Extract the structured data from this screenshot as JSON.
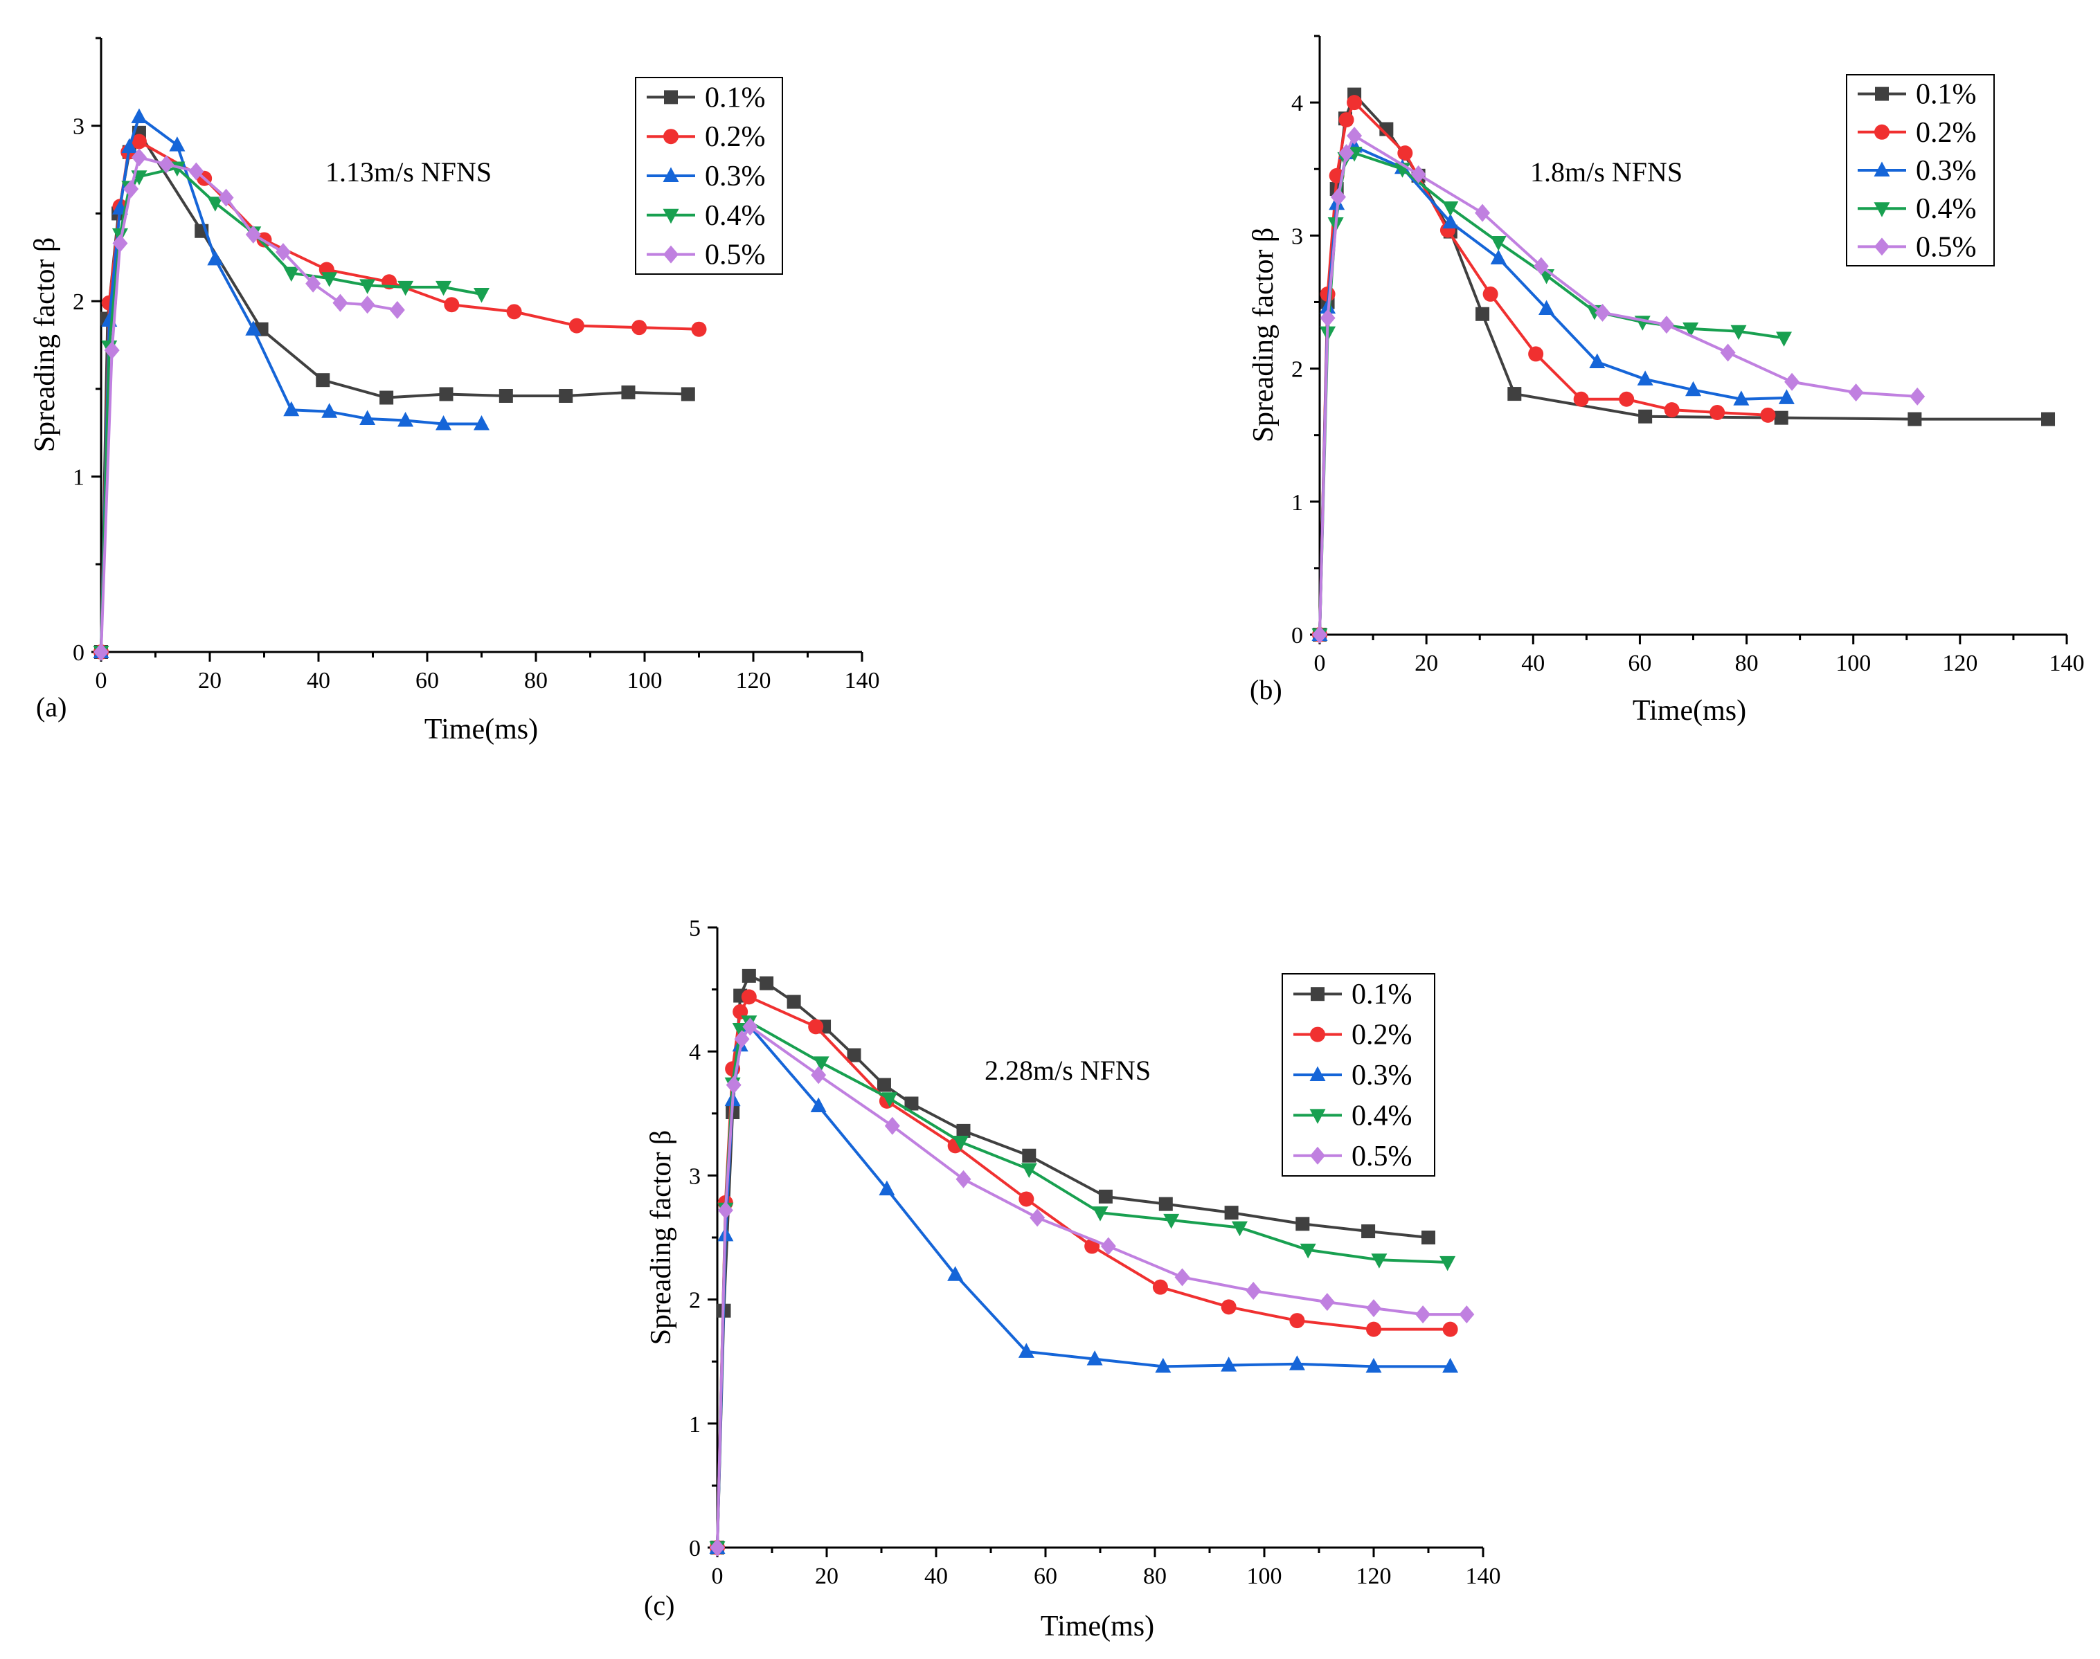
{
  "figure": {
    "background": "#ffffff"
  },
  "chart_data": [
    {
      "type": "line",
      "panel_label": "(a)",
      "annotation": "1.13m/s   NFNS",
      "xlabel": "Time(ms)",
      "ylabel": "Spreading factor β",
      "xlim": [
        0,
        140
      ],
      "ylim": [
        0,
        3.5
      ],
      "xticks": [
        0,
        20,
        40,
        60,
        80,
        100,
        120,
        140
      ],
      "yticks": [
        0,
        1,
        2,
        3
      ],
      "legend_position": "top-right",
      "series": [
        {
          "name": "0.1%",
          "color": "#404040",
          "marker": "square",
          "x": [
            0,
            1.2,
            3.2,
            5.2,
            7.0,
            18.5,
            29.5,
            40.8,
            52.5,
            63.5,
            74.5,
            85.5,
            97.0,
            108.0
          ],
          "y": [
            0,
            1.9,
            2.5,
            2.85,
            2.96,
            2.4,
            1.84,
            1.55,
            1.45,
            1.47,
            1.46,
            1.46,
            1.48,
            1.47
          ]
        },
        {
          "name": "0.2%",
          "color": "#f03030",
          "marker": "circle",
          "x": [
            0,
            1.5,
            3.5,
            5.0,
            7.0,
            19.0,
            30.0,
            41.5,
            53.0,
            64.5,
            76.0,
            87.5,
            99.0,
            110.0
          ],
          "y": [
            0,
            1.99,
            2.54,
            2.85,
            2.91,
            2.7,
            2.35,
            2.18,
            2.11,
            1.98,
            1.94,
            1.86,
            1.85,
            1.84
          ]
        },
        {
          "name": "0.3%",
          "color": "#1565d8",
          "marker": "triangle-up",
          "x": [
            0,
            1.5,
            3.5,
            5.2,
            7.0,
            14.0,
            21.0,
            28.0,
            35.0,
            42.0,
            49.0,
            56.0,
            63.0,
            70.0
          ],
          "y": [
            0,
            1.89,
            2.53,
            2.88,
            3.05,
            2.89,
            2.24,
            1.84,
            1.38,
            1.37,
            1.33,
            1.32,
            1.3,
            1.3
          ]
        },
        {
          "name": "0.4%",
          "color": "#18a050",
          "marker": "triangle-down",
          "x": [
            0,
            1.5,
            3.5,
            5.2,
            7.0,
            14.0,
            21.0,
            28.0,
            35.0,
            42.0,
            49.0,
            56.0,
            63.0,
            70.0
          ],
          "y": [
            0,
            1.74,
            2.38,
            2.65,
            2.71,
            2.76,
            2.56,
            2.39,
            2.16,
            2.13,
            2.09,
            2.08,
            2.08,
            2.04
          ]
        },
        {
          "name": "0.5%",
          "color": "#c080e0",
          "marker": "diamond",
          "x": [
            0,
            2.0,
            3.5,
            5.5,
            7.0,
            12.0,
            17.5,
            23.0,
            28.0,
            33.5,
            39.0,
            44.0,
            49.0,
            54.5
          ],
          "y": [
            0,
            1.72,
            2.33,
            2.64,
            2.82,
            2.78,
            2.74,
            2.59,
            2.38,
            2.28,
            2.1,
            1.99,
            1.98,
            1.95
          ]
        }
      ]
    },
    {
      "type": "line",
      "panel_label": "(b)",
      "annotation": "1.8m/s   NFNS",
      "xlabel": "Time(ms)",
      "ylabel": "Spreading factor β",
      "xlim": [
        0,
        140
      ],
      "ylim": [
        0,
        4.5
      ],
      "xticks": [
        0,
        20,
        40,
        60,
        80,
        100,
        120,
        140
      ],
      "yticks": [
        0,
        1,
        2,
        3,
        4
      ],
      "legend_position": "top-right",
      "series": [
        {
          "name": "0.1%",
          "color": "#404040",
          "marker": "square",
          "x": [
            0,
            1.5,
            3.2,
            4.8,
            6.5,
            12.5,
            18.5,
            24.5,
            30.5,
            36.5,
            61.0,
            86.5,
            111.5,
            136.5
          ],
          "y": [
            0,
            2.5,
            3.35,
            3.88,
            4.06,
            3.8,
            3.45,
            3.03,
            2.41,
            1.81,
            1.64,
            1.63,
            1.62,
            1.62
          ]
        },
        {
          "name": "0.2%",
          "color": "#f03030",
          "marker": "circle",
          "x": [
            0,
            1.5,
            3.2,
            5.0,
            6.5,
            16.0,
            24.0,
            32.0,
            40.5,
            49.0,
            57.5,
            66.0,
            74.5,
            84.0
          ],
          "y": [
            0,
            2.56,
            3.45,
            3.87,
            4.0,
            3.62,
            3.04,
            2.56,
            2.11,
            1.77,
            1.77,
            1.69,
            1.67,
            1.65
          ]
        },
        {
          "name": "0.3%",
          "color": "#1565d8",
          "marker": "triangle-up",
          "x": [
            0,
            1.5,
            3.2,
            5.0,
            6.5,
            15.5,
            24.5,
            33.5,
            42.5,
            52.0,
            61.0,
            70.0,
            79.0,
            87.5
          ],
          "y": [
            0,
            2.46,
            3.24,
            3.62,
            3.67,
            3.51,
            3.1,
            2.83,
            2.45,
            2.05,
            1.92,
            1.84,
            1.77,
            1.78
          ]
        },
        {
          "name": "0.4%",
          "color": "#18a050",
          "marker": "triangle-down",
          "x": [
            0,
            1.5,
            3.0,
            4.8,
            6.5,
            15.5,
            24.5,
            33.5,
            42.5,
            51.5,
            60.5,
            69.5,
            78.5,
            87.0
          ],
          "y": [
            0,
            2.27,
            3.09,
            3.58,
            3.62,
            3.5,
            3.21,
            2.95,
            2.7,
            2.43,
            2.35,
            2.3,
            2.28,
            2.23
          ]
        },
        {
          "name": "0.5%",
          "color": "#c080e0",
          "marker": "diamond",
          "x": [
            0,
            1.5,
            3.5,
            5.0,
            6.5,
            18.5,
            30.5,
            41.5,
            53.0,
            65.0,
            76.5,
            88.5,
            100.5,
            112.0
          ],
          "y": [
            0,
            2.38,
            3.29,
            3.62,
            3.75,
            3.46,
            3.17,
            2.77,
            2.42,
            2.33,
            2.12,
            1.9,
            1.82,
            1.79
          ]
        }
      ]
    },
    {
      "type": "line",
      "panel_label": "(c)",
      "annotation": "2.28m/s   NFNS",
      "xlabel": "Time(ms)",
      "ylabel": "Spreading factor β",
      "xlim": [
        0,
        140
      ],
      "ylim": [
        0,
        5
      ],
      "xticks": [
        0,
        20,
        40,
        60,
        80,
        100,
        120,
        140
      ],
      "yticks": [
        0,
        1,
        2,
        3,
        4,
        5
      ],
      "legend_position": "top-right",
      "series": [
        {
          "name": "0.1%",
          "color": "#404040",
          "marker": "square",
          "x": [
            0,
            1.2,
            2.8,
            4.2,
            5.8,
            9.0,
            14.0,
            19.5,
            25.0,
            30.5,
            35.5,
            45.0,
            57.0,
            71.0,
            82.0,
            94.0,
            107.0,
            119.0,
            130.0
          ],
          "y": [
            0,
            1.91,
            3.51,
            4.45,
            4.61,
            4.55,
            4.4,
            4.2,
            3.97,
            3.73,
            3.58,
            3.36,
            3.16,
            2.83,
            2.77,
            2.7,
            2.61,
            2.55,
            2.5
          ]
        },
        {
          "name": "0.2%",
          "color": "#f03030",
          "marker": "circle",
          "x": [
            0,
            1.5,
            2.8,
            4.2,
            5.8,
            18.0,
            31.0,
            43.5,
            56.5,
            68.5,
            81.0,
            93.5,
            106.0,
            120.0,
            134.0
          ],
          "y": [
            0,
            2.78,
            3.86,
            4.32,
            4.44,
            4.2,
            3.6,
            3.24,
            2.81,
            2.43,
            2.1,
            1.94,
            1.83,
            1.76,
            1.76
          ]
        },
        {
          "name": "0.3%",
          "color": "#1565d8",
          "marker": "triangle-up",
          "x": [
            0,
            1.5,
            2.8,
            4.2,
            5.8,
            18.5,
            31.0,
            43.5,
            56.5,
            69.0,
            81.5,
            93.5,
            106.0,
            120.0,
            134.0
          ],
          "y": [
            0,
            2.52,
            3.61,
            4.05,
            4.21,
            3.56,
            2.89,
            2.2,
            1.58,
            1.52,
            1.46,
            1.47,
            1.48,
            1.46,
            1.46
          ]
        },
        {
          "name": "0.4%",
          "color": "#18a050",
          "marker": "triangle-down",
          "x": [
            0,
            1.5,
            2.8,
            4.2,
            5.8,
            19.0,
            31.5,
            44.5,
            57.0,
            70.0,
            83.0,
            95.5,
            108.0,
            121.0,
            133.5
          ],
          "y": [
            0,
            2.73,
            3.74,
            4.18,
            4.24,
            3.91,
            3.62,
            3.27,
            3.05,
            2.7,
            2.64,
            2.58,
            2.4,
            2.32,
            2.3
          ]
        },
        {
          "name": "0.5%",
          "color": "#c080e0",
          "marker": "diamond",
          "x": [
            0,
            1.5,
            3.0,
            4.5,
            6.0,
            18.5,
            32.0,
            45.0,
            58.5,
            71.5,
            85.0,
            98.0,
            111.5,
            120.0,
            129.0,
            137.0
          ],
          "y": [
            0,
            2.72,
            3.73,
            4.1,
            4.2,
            3.81,
            3.4,
            2.97,
            2.66,
            2.43,
            2.18,
            2.07,
            1.98,
            1.93,
            1.88,
            1.88
          ]
        }
      ]
    }
  ]
}
